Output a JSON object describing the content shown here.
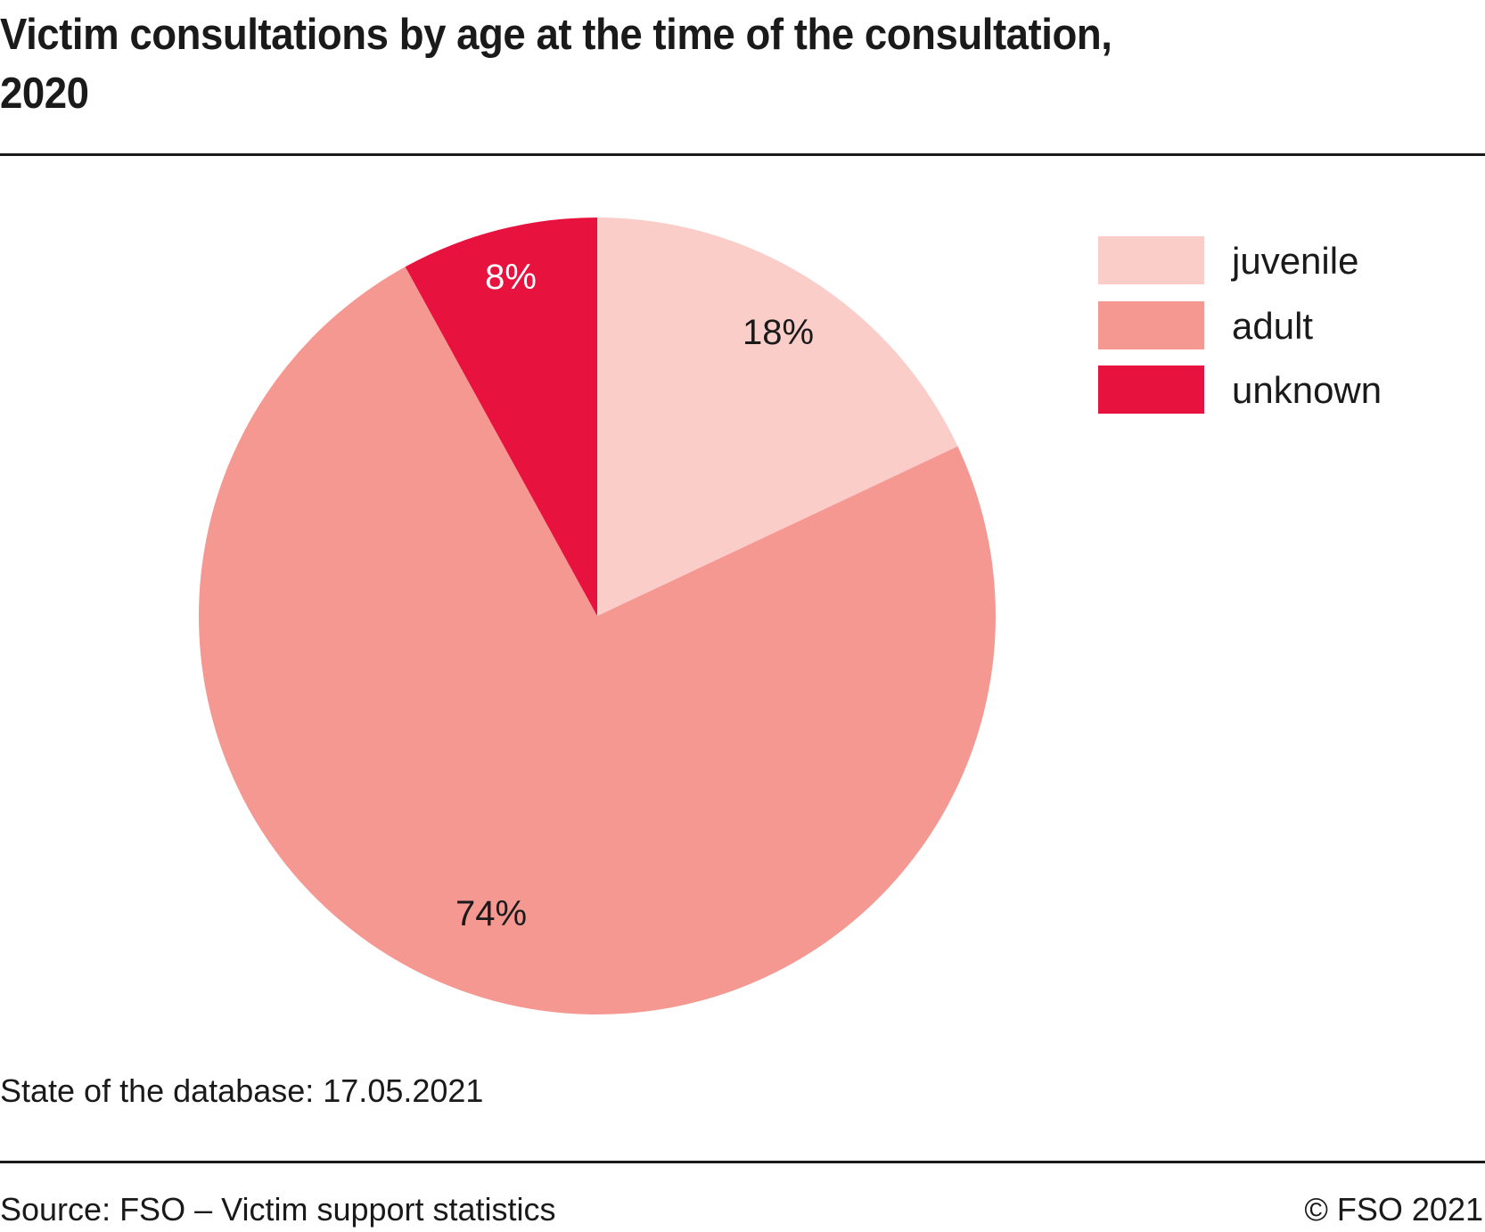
{
  "title": "Victim consultations by age at the time of the consultation, 2020",
  "title_line1": "Victim consultations by age at the time of the consultation,",
  "title_line2": "2020",
  "note": "State of the database: 17.05.2021",
  "source": "Source: FSO – Victim support statistics",
  "copyright": "© FSO 2021",
  "chart_data": {
    "type": "pie",
    "title": "Victim consultations by age at the time of the consultation, 2020",
    "categories": [
      "juvenile",
      "adult",
      "unknown"
    ],
    "values": [
      18,
      74,
      8
    ],
    "labels": [
      "18%",
      "74%",
      "8%"
    ],
    "colors": [
      "#fbcdc9",
      "#f59892",
      "#e8123e"
    ],
    "label_colors": [
      "#1a1a1a",
      "#1a1a1a",
      "#ffffff"
    ],
    "legend_position": "top-right",
    "start": "12 o'clock, clockwise"
  }
}
